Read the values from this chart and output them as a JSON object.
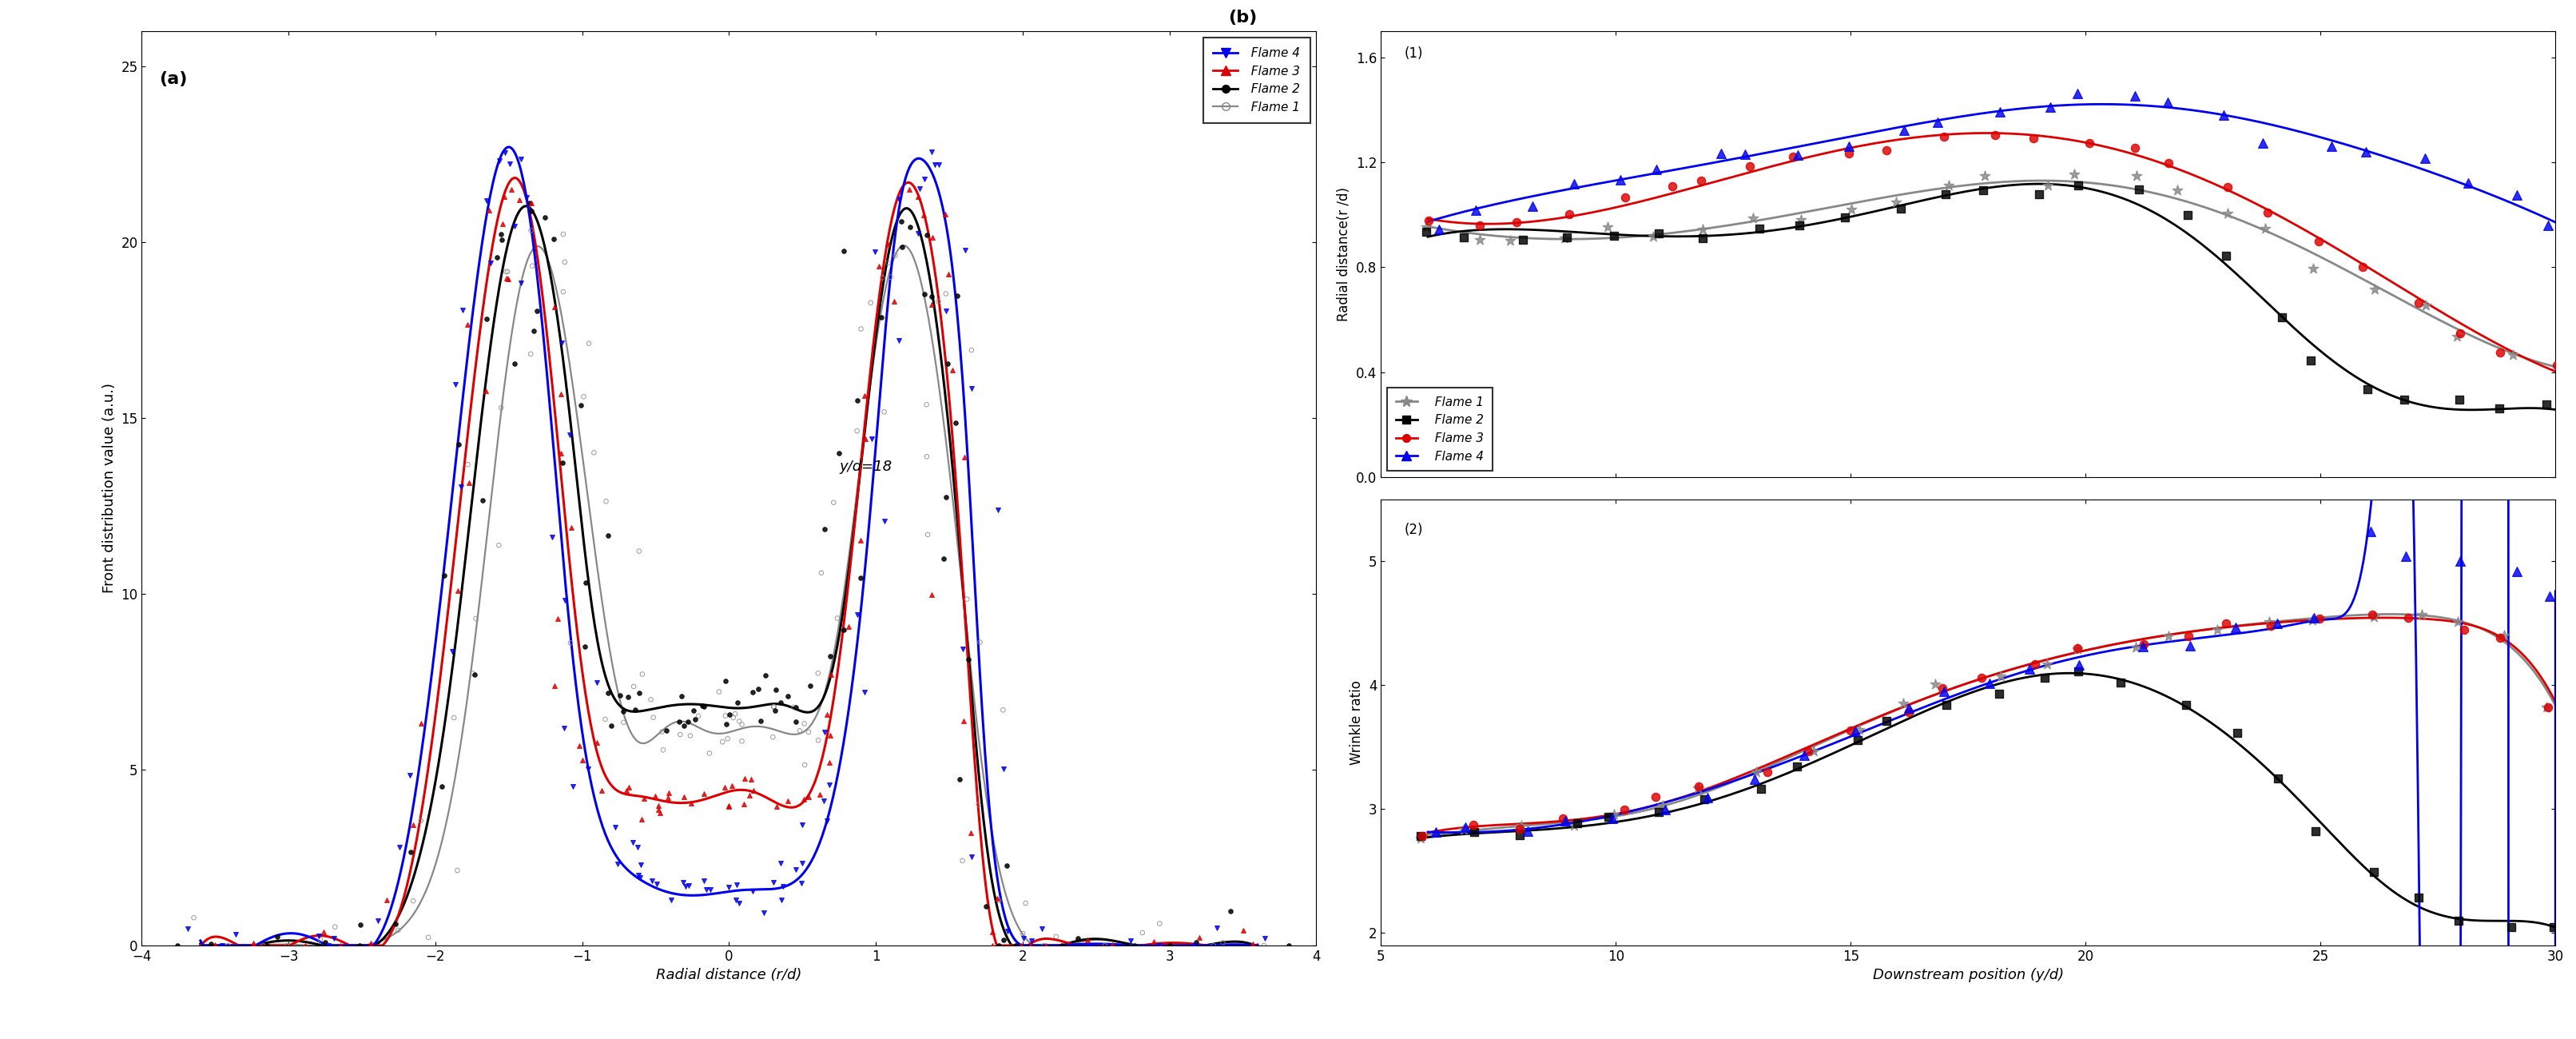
{
  "colors": {
    "flame1_color": "#888888",
    "flame2_color": "#000000",
    "flame3_color": "#dd0000",
    "flame4_color": "#0000ee"
  },
  "panel_a": {
    "xlabel": "Radial distance (r/d)",
    "ylabel": "Front distribution value (a.u.)",
    "annotation": "y/d=18",
    "xlim": [
      -4,
      4
    ],
    "ylim": [
      0,
      26
    ],
    "yticks": [
      0,
      5,
      10,
      15,
      20,
      25
    ],
    "xticks": [
      -4,
      -3,
      -2,
      -1,
      0,
      1,
      2,
      3,
      4
    ],
    "flame1_x": [
      -3.6,
      -3.4,
      -3.2,
      -3.0,
      -2.8,
      -2.6,
      -2.4,
      -2.2,
      -2.1,
      -2.0,
      -1.9,
      -1.8,
      -1.75,
      -1.7,
      -1.65,
      -1.6,
      -1.55,
      -1.5,
      -1.45,
      -1.4,
      -1.35,
      -1.3,
      -1.25,
      -1.2,
      -1.15,
      -1.1,
      -1.05,
      -1.0,
      -0.95,
      -0.9,
      -0.85,
      -0.8,
      -0.75,
      -0.7,
      -0.65,
      -0.6,
      -0.55,
      -0.5,
      -0.45,
      -0.4,
      -0.35,
      -0.3,
      -0.25,
      -0.2,
      -0.15,
      -0.1,
      -0.05,
      0.0,
      0.05,
      0.1,
      0.15,
      0.2,
      0.25,
      0.3,
      0.35,
      0.4,
      0.45,
      0.5,
      0.55,
      0.6,
      0.65,
      0.7,
      0.75,
      0.8,
      0.85,
      0.9,
      0.95,
      1.0,
      1.05,
      1.1,
      1.15,
      1.2,
      1.25,
      1.3,
      1.35,
      1.4,
      1.45,
      1.5,
      1.55,
      1.6,
      1.65,
      1.7,
      1.75,
      1.8,
      1.9,
      2.0,
      2.1,
      2.2,
      2.4,
      2.6,
      2.8,
      3.0,
      3.2,
      3.4,
      3.6
    ],
    "flame1_y": [
      0.0,
      0.0,
      0.0,
      0.0,
      0.0,
      0.0,
      0.1,
      0.5,
      1.2,
      2.5,
      4.0,
      6.5,
      8.0,
      9.5,
      11.5,
      13.5,
      15.5,
      17.0,
      18.2,
      19.0,
      19.5,
      19.8,
      19.5,
      19.0,
      18.2,
      17.2,
      15.8,
      14.2,
      12.5,
      10.5,
      9.0,
      7.8,
      7.0,
      6.5,
      6.2,
      6.0,
      6.0,
      6.0,
      6.0,
      6.1,
      6.2,
      6.3,
      6.3,
      6.3,
      6.2,
      6.1,
      6.0,
      6.0,
      6.0,
      6.1,
      6.2,
      6.3,
      6.3,
      6.3,
      6.2,
      6.0,
      6.0,
      6.0,
      6.2,
      6.5,
      7.0,
      7.8,
      9.0,
      10.5,
      12.5,
      14.2,
      15.8,
      17.2,
      18.2,
      19.0,
      19.5,
      19.8,
      19.5,
      19.0,
      18.2,
      17.0,
      15.5,
      13.5,
      11.5,
      9.5,
      8.0,
      6.5,
      4.0,
      2.5,
      1.2,
      0.5,
      0.1,
      0.0,
      0.0,
      0.0,
      0.0,
      0.0,
      0.0,
      0.0,
      0.0
    ],
    "flame2_x": [
      -3.6,
      -3.4,
      -3.2,
      -3.0,
      -2.8,
      -2.6,
      -2.4,
      -2.2,
      -2.1,
      -2.0,
      -1.9,
      -1.8,
      -1.75,
      -1.7,
      -1.65,
      -1.6,
      -1.55,
      -1.5,
      -1.45,
      -1.4,
      -1.35,
      -1.3,
      -1.25,
      -1.2,
      -1.15,
      -1.1,
      -1.05,
      -1.0,
      -0.95,
      -0.9,
      -0.85,
      -0.8,
      -0.75,
      -0.7,
      -0.65,
      -0.6,
      -0.55,
      -0.5,
      -0.45,
      -0.4,
      -0.35,
      -0.3,
      -0.25,
      -0.2,
      -0.15,
      -0.1,
      -0.05,
      0.0,
      0.05,
      0.1,
      0.15,
      0.2,
      0.25,
      0.3,
      0.35,
      0.4,
      0.45,
      0.5,
      0.55,
      0.6,
      0.65,
      0.7,
      0.75,
      0.8,
      0.85,
      0.9,
      0.95,
      1.0,
      1.05,
      1.1,
      1.15,
      1.2,
      1.25,
      1.3,
      1.35,
      1.4,
      1.45,
      1.5,
      1.55,
      1.6,
      1.65,
      1.7,
      1.75,
      1.8,
      1.9,
      2.0,
      2.1,
      2.2,
      2.4,
      2.6,
      2.8,
      3.0,
      3.2,
      3.4,
      3.6
    ],
    "flame2_y": [
      0.0,
      0.0,
      0.0,
      0.0,
      0.0,
      0.0,
      0.2,
      1.0,
      2.5,
      5.0,
      7.5,
      10.5,
      12.5,
      14.5,
      16.5,
      18.0,
      19.2,
      20.0,
      20.5,
      20.8,
      20.8,
      20.5,
      19.8,
      18.8,
      17.5,
      15.8,
      13.8,
      12.0,
      10.2,
      8.5,
      7.5,
      7.0,
      6.8,
      6.8,
      6.8,
      6.8,
      6.8,
      6.8,
      6.8,
      6.8,
      6.8,
      6.8,
      6.8,
      6.8,
      6.8,
      6.8,
      6.8,
      6.8,
      6.8,
      6.8,
      6.8,
      6.8,
      6.8,
      6.8,
      6.8,
      6.8,
      6.8,
      6.8,
      6.8,
      6.8,
      7.0,
      7.5,
      8.5,
      10.2,
      12.0,
      13.8,
      15.8,
      17.5,
      18.8,
      19.8,
      20.5,
      20.8,
      20.8,
      20.5,
      19.2,
      18.0,
      16.5,
      14.5,
      12.5,
      10.5,
      7.5,
      5.0,
      2.5,
      1.0,
      0.2,
      0.0,
      0.0,
      0.0,
      0.0,
      0.0,
      0.0,
      0.0,
      0.0,
      0.0,
      0.0
    ],
    "flame3_x": [
      -3.6,
      -3.4,
      -3.2,
      -3.0,
      -2.8,
      -2.6,
      -2.4,
      -2.2,
      -2.1,
      -2.0,
      -1.9,
      -1.8,
      -1.75,
      -1.7,
      -1.65,
      -1.6,
      -1.55,
      -1.5,
      -1.45,
      -1.4,
      -1.35,
      -1.3,
      -1.25,
      -1.2,
      -1.15,
      -1.1,
      -1.05,
      -1.0,
      -0.95,
      -0.9,
      -0.85,
      -0.8,
      -0.75,
      -0.7,
      -0.65,
      -0.6,
      -0.55,
      -0.5,
      -0.45,
      -0.4,
      -0.35,
      -0.3,
      -0.25,
      -0.2,
      -0.15,
      -0.1,
      -0.05,
      0.0,
      0.05,
      0.1,
      0.15,
      0.2,
      0.25,
      0.3,
      0.35,
      0.4,
      0.45,
      0.5,
      0.55,
      0.6,
      0.65,
      0.7,
      0.75,
      0.8,
      0.85,
      0.9,
      0.95,
      1.0,
      1.05,
      1.1,
      1.15,
      1.2,
      1.25,
      1.3,
      1.35,
      1.4,
      1.45,
      1.5,
      1.55,
      1.6,
      1.65,
      1.7,
      1.75,
      1.8,
      1.9,
      2.0,
      2.1,
      2.2,
      2.4,
      2.6,
      2.8,
      3.0,
      3.2,
      3.4,
      3.6
    ],
    "flame3_y": [
      0.0,
      0.0,
      0.0,
      0.0,
      0.0,
      0.0,
      0.3,
      1.5,
      3.5,
      6.5,
      10.0,
      13.5,
      15.5,
      17.5,
      19.2,
      20.5,
      21.2,
      21.5,
      21.5,
      21.2,
      20.5,
      19.5,
      18.0,
      16.0,
      13.8,
      11.5,
      9.5,
      7.8,
      6.5,
      5.5,
      4.8,
      4.5,
      4.3,
      4.2,
      4.2,
      4.2,
      4.2,
      4.2,
      4.2,
      4.2,
      4.2,
      4.2,
      4.2,
      4.2,
      4.2,
      4.2,
      4.2,
      4.2,
      4.2,
      4.2,
      4.2,
      4.2,
      4.2,
      4.2,
      4.2,
      4.2,
      4.2,
      4.3,
      4.5,
      4.8,
      5.5,
      6.5,
      7.8,
      9.5,
      11.5,
      13.8,
      16.0,
      18.0,
      19.5,
      20.5,
      21.2,
      21.5,
      21.5,
      21.2,
      20.5,
      19.2,
      17.5,
      15.5,
      13.5,
      10.0,
      6.5,
      3.5,
      1.5,
      0.3,
      0.0,
      0.0,
      0.0,
      0.0,
      0.0,
      0.0,
      0.0,
      0.0,
      0.0,
      0.0,
      0.0
    ],
    "flame4_x": [
      -3.6,
      -3.4,
      -3.2,
      -3.0,
      -2.8,
      -2.6,
      -2.4,
      -2.2,
      -2.1,
      -2.0,
      -1.9,
      -1.8,
      -1.75,
      -1.7,
      -1.65,
      -1.6,
      -1.55,
      -1.5,
      -1.45,
      -1.4,
      -1.35,
      -1.3,
      -1.25,
      -1.2,
      -1.15,
      -1.1,
      -1.05,
      -1.0,
      -0.95,
      -0.9,
      -0.85,
      -0.8,
      -0.75,
      -0.7,
      -0.65,
      -0.6,
      -0.55,
      -0.5,
      -0.45,
      -0.4,
      -0.35,
      -0.3,
      -0.25,
      -0.2,
      -0.15,
      -0.1,
      -0.05,
      0.0,
      0.05,
      0.1,
      0.15,
      0.2,
      0.25,
      0.3,
      0.35,
      0.4,
      0.45,
      0.5,
      0.55,
      0.6,
      0.65,
      0.7,
      0.75,
      0.8,
      0.85,
      0.9,
      0.95,
      1.0,
      1.05,
      1.1,
      1.15,
      1.2,
      1.25,
      1.3,
      1.35,
      1.4,
      1.45,
      1.5,
      1.55,
      1.6,
      1.65,
      1.7,
      1.75,
      1.8,
      1.9,
      2.0,
      2.1,
      2.2,
      2.4,
      2.6,
      2.8,
      3.0,
      3.2,
      3.4,
      3.6
    ],
    "flame4_y": [
      0.0,
      0.0,
      0.0,
      0.0,
      0.0,
      0.1,
      0.5,
      2.5,
      5.0,
      8.5,
      12.5,
      16.0,
      17.8,
      19.5,
      21.0,
      22.0,
      22.5,
      22.5,
      22.2,
      21.5,
      20.5,
      19.0,
      17.0,
      14.5,
      12.0,
      9.5,
      7.5,
      6.0,
      5.0,
      4.0,
      3.2,
      2.8,
      2.5,
      2.2,
      2.0,
      1.8,
      1.7,
      1.6,
      1.5,
      1.5,
      1.5,
      1.5,
      1.5,
      1.5,
      1.5,
      1.5,
      1.5,
      1.5,
      1.5,
      1.5,
      1.5,
      1.5,
      1.5,
      1.5,
      1.7,
      1.8,
      2.0,
      2.2,
      2.5,
      2.8,
      3.2,
      4.0,
      5.0,
      6.0,
      7.5,
      9.5,
      12.0,
      14.5,
      17.0,
      19.0,
      20.5,
      21.5,
      22.2,
      22.5,
      22.5,
      22.0,
      21.0,
      19.5,
      17.8,
      16.0,
      12.5,
      8.5,
      5.0,
      2.5,
      0.5,
      0.1,
      0.0,
      0.0,
      0.0,
      0.0,
      0.0,
      0.0,
      0.0,
      0.0,
      0.0
    ]
  },
  "panel_b1": {
    "title": "(1)",
    "ylabel": "Radial distance(r /d)",
    "xlim": [
      5,
      30
    ],
    "ylim": [
      0.0,
      1.7
    ],
    "yticks": [
      0.0,
      0.4,
      0.8,
      1.2,
      1.6
    ],
    "xticks": [
      5,
      10,
      15,
      20,
      25,
      30
    ],
    "flame1_x": [
      6,
      7,
      8,
      9,
      10,
      11,
      12,
      13,
      14,
      15,
      16,
      17,
      18,
      19,
      20,
      21,
      22,
      23,
      24,
      25,
      26,
      27,
      28,
      29,
      30
    ],
    "flame1_y": [
      0.93,
      0.93,
      0.93,
      0.93,
      0.93,
      0.94,
      0.95,
      0.96,
      0.98,
      1.01,
      1.06,
      1.1,
      1.13,
      1.14,
      1.14,
      1.12,
      1.08,
      1.02,
      0.93,
      0.82,
      0.72,
      0.63,
      0.55,
      0.48,
      0.44
    ],
    "flame2_x": [
      6,
      7,
      8,
      9,
      10,
      11,
      12,
      13,
      14,
      15,
      16,
      17,
      18,
      19,
      20,
      21,
      22,
      23,
      24,
      25,
      26,
      27,
      28,
      29,
      30
    ],
    "flame2_y": [
      0.93,
      0.93,
      0.93,
      0.93,
      0.93,
      0.93,
      0.93,
      0.94,
      0.96,
      0.99,
      1.03,
      1.06,
      1.09,
      1.1,
      1.1,
      1.07,
      1.0,
      0.82,
      0.62,
      0.44,
      0.34,
      0.3,
      0.28,
      0.26,
      0.25
    ],
    "flame3_x": [
      6,
      7,
      8,
      9,
      10,
      11,
      12,
      13,
      14,
      15,
      16,
      17,
      18,
      19,
      20,
      21,
      22,
      23,
      24,
      25,
      26,
      27,
      28,
      29,
      30
    ],
    "flame3_y": [
      0.96,
      0.97,
      0.99,
      1.01,
      1.04,
      1.08,
      1.12,
      1.16,
      1.2,
      1.24,
      1.27,
      1.29,
      1.3,
      1.3,
      1.29,
      1.26,
      1.2,
      1.12,
      1.02,
      0.9,
      0.78,
      0.66,
      0.56,
      0.49,
      0.43
    ],
    "flame4_x": [
      6,
      7,
      8,
      9,
      10,
      11,
      12,
      13,
      14,
      15,
      16,
      17,
      18,
      19,
      20,
      21,
      22,
      23,
      24,
      25,
      26,
      27,
      28,
      29,
      30
    ],
    "flame4_y": [
      0.98,
      1.01,
      1.06,
      1.1,
      1.14,
      1.17,
      1.2,
      1.23,
      1.26,
      1.29,
      1.32,
      1.35,
      1.38,
      1.42,
      1.45,
      1.46,
      1.42,
      1.36,
      1.3,
      1.27,
      1.24,
      1.2,
      1.14,
      1.07,
      0.95
    ]
  },
  "panel_b2": {
    "title": "(2)",
    "ylabel": "Wrinkle ratio",
    "xlabel": "Downstream position (y/d)",
    "xlim": [
      5,
      30
    ],
    "ylim": [
      1.9,
      5.5
    ],
    "yticks": [
      2,
      3,
      4,
      5
    ],
    "xticks": [
      5,
      10,
      15,
      20,
      25,
      30
    ],
    "flame1_x": [
      6,
      7,
      8,
      9,
      10,
      11,
      12,
      13,
      14,
      15,
      16,
      17,
      18,
      19,
      20,
      21,
      22,
      23,
      24,
      25,
      26,
      27,
      28,
      29,
      30
    ],
    "flame1_y": [
      2.8,
      2.82,
      2.86,
      2.9,
      2.96,
      3.04,
      3.14,
      3.28,
      3.46,
      3.64,
      3.82,
      3.97,
      4.09,
      4.19,
      4.27,
      4.34,
      4.41,
      4.48,
      4.53,
      4.56,
      4.57,
      4.55,
      4.48,
      4.38,
      3.82
    ],
    "flame2_x": [
      6,
      7,
      8,
      9,
      10,
      11,
      12,
      13,
      14,
      15,
      16,
      17,
      18,
      19,
      20,
      21,
      22,
      23,
      24,
      25,
      26,
      27,
      28,
      29,
      30
    ],
    "flame2_y": [
      2.78,
      2.8,
      2.82,
      2.85,
      2.9,
      2.96,
      3.06,
      3.2,
      3.37,
      3.53,
      3.69,
      3.84,
      3.96,
      4.06,
      4.11,
      4.04,
      3.88,
      3.62,
      3.28,
      2.86,
      2.48,
      2.26,
      2.13,
      2.08,
      2.05
    ],
    "flame3_x": [
      6,
      7,
      8,
      9,
      10,
      11,
      12,
      13,
      14,
      15,
      16,
      17,
      18,
      19,
      20,
      21,
      22,
      23,
      24,
      25,
      26,
      27,
      28,
      29,
      30
    ],
    "flame3_y": [
      2.82,
      2.84,
      2.88,
      2.92,
      2.98,
      3.06,
      3.16,
      3.3,
      3.48,
      3.65,
      3.82,
      3.97,
      4.09,
      4.19,
      4.27,
      4.34,
      4.41,
      4.48,
      4.52,
      4.54,
      4.55,
      4.52,
      4.47,
      4.4,
      3.85
    ],
    "flame4_x": [
      6,
      7,
      8,
      9,
      10,
      11,
      12,
      13,
      14,
      15,
      16,
      17,
      18,
      19,
      20,
      21,
      22,
      23,
      24,
      25,
      26,
      27,
      28,
      29,
      30
    ],
    "flame4_y": [
      2.8,
      2.82,
      2.86,
      2.9,
      2.96,
      3.03,
      3.13,
      3.27,
      3.44,
      3.6,
      3.77,
      3.92,
      4.03,
      4.13,
      4.21,
      4.29,
      4.36,
      4.43,
      4.48,
      4.51,
      5.22,
      5.02,
      4.96,
      4.88,
      4.76
    ]
  }
}
